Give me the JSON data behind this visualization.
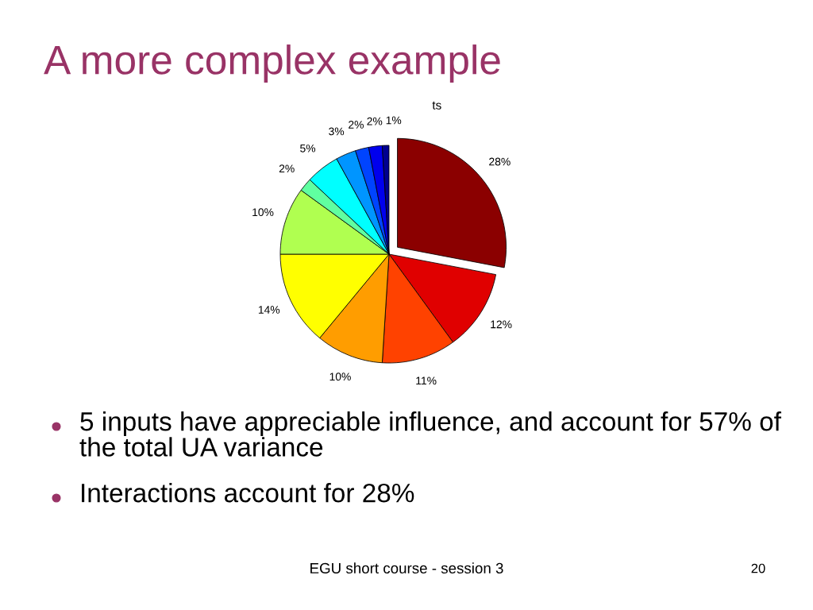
{
  "chart_data": {
    "type": "pie",
    "title": "A more complex example",
    "subtitle": "ts",
    "categories": [
      null,
      null,
      null,
      null,
      null,
      null,
      null,
      null,
      null,
      null,
      null,
      null
    ],
    "values": [
      28,
      12,
      11,
      10,
      14,
      10,
      2,
      5,
      3,
      2,
      2,
      1
    ],
    "colors": [
      "#8b0000",
      "#e00000",
      "#ff4200",
      "#ff9d00",
      "#ffff00",
      "#b0ff50",
      "#60ffa0",
      "#00ffff",
      "#0095ff",
      "#0044ff",
      "#0000ee",
      "#000090"
    ],
    "value_labels": [
      "28%",
      "12%",
      "11%",
      "10%",
      "14%",
      "10%",
      "2%",
      "5%",
      "3%",
      "2%",
      "2%",
      "1%"
    ],
    "annotations": [
      "5 inputs have appreciable influence, and account for 57% of the total UA variance",
      "Interactions account for 28%",
      "EGU short course - session 3",
      "20"
    ]
  }
}
